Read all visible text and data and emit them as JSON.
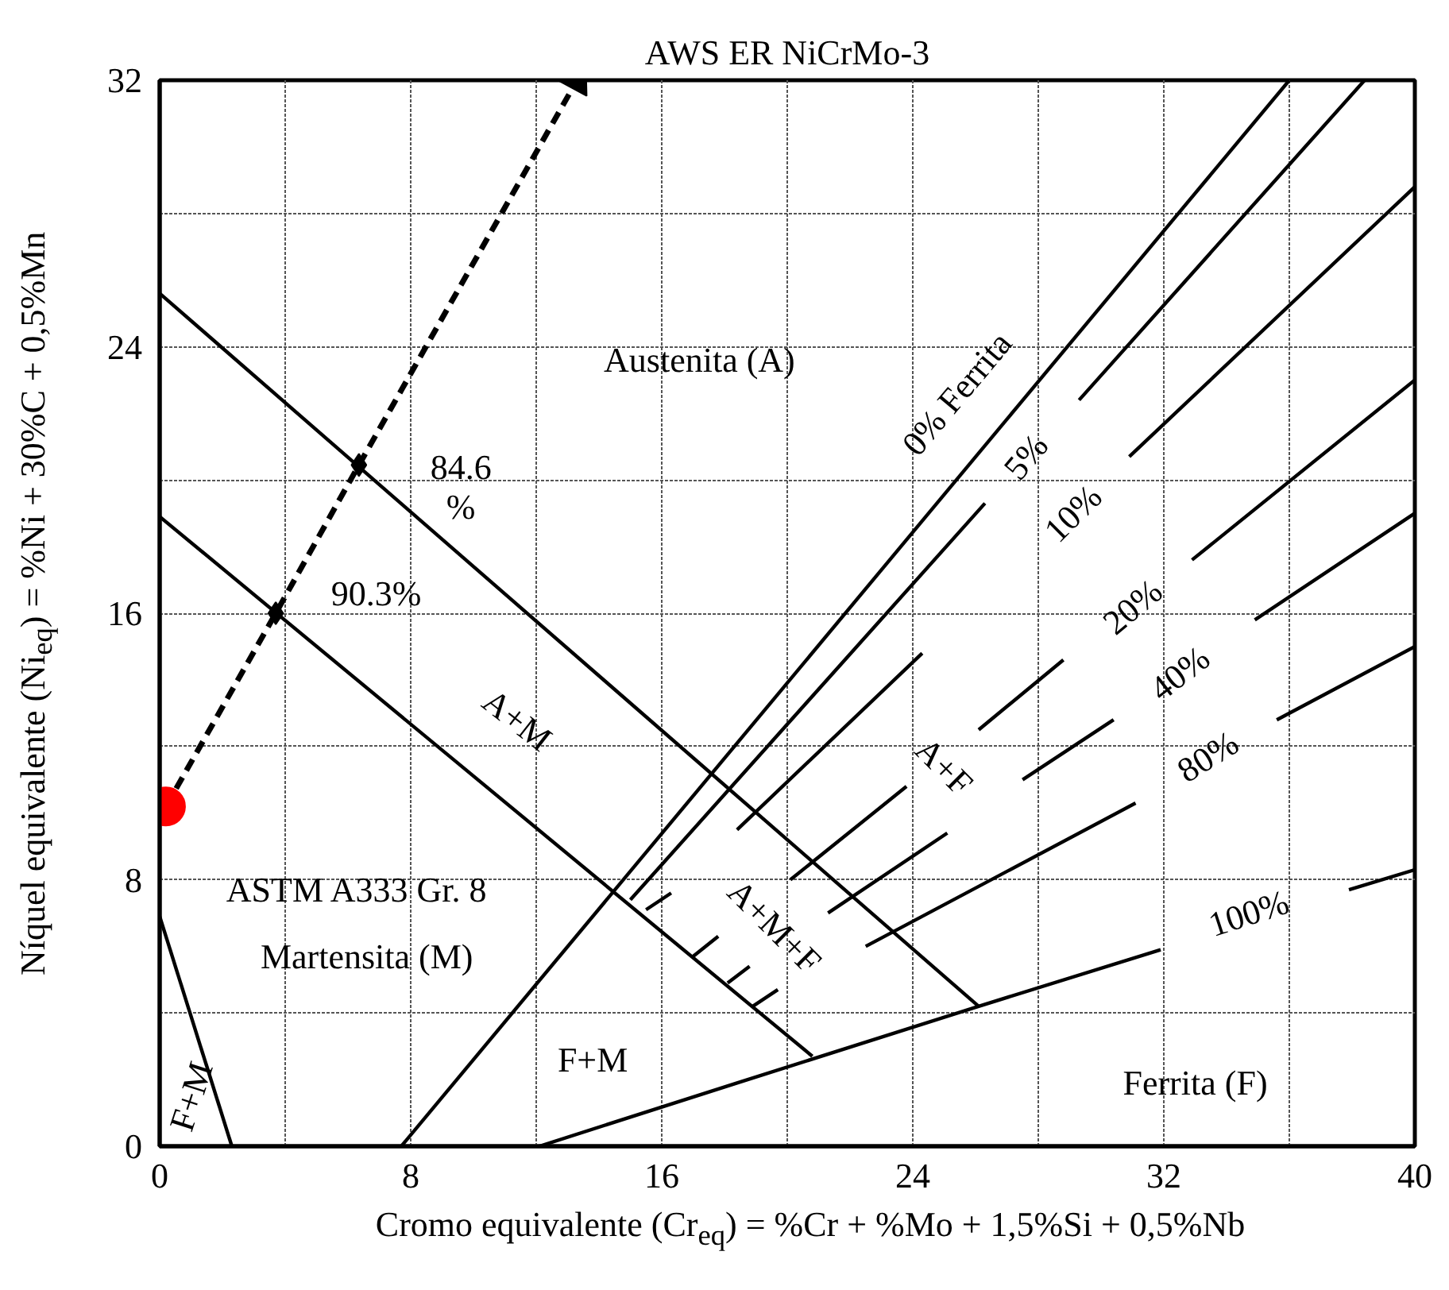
{
  "chart_data": {
    "type": "line",
    "title": "AWS ER NiCrMo-3",
    "xlabel": "Cromo equivalente (Cr$_{eq}$) = %Cr + %Mo + 1,5%Si + 0,5%Nb",
    "ylabel": "Níquel equivalente (Ni$_{eq}$) = %Ni + 30%C + 0,5%Mn",
    "xlim": [
      0,
      40
    ],
    "ylim": [
      0,
      32
    ],
    "xticks": [
      0,
      {
        "value": 4,
        "label": null
      },
      8,
      {
        "value": 12,
        "label": null
      },
      16,
      {
        "value": 20,
        "label": null
      },
      24,
      {
        "value": 28,
        "label": null
      },
      32,
      {
        "value": 36,
        "label": null
      },
      40
    ],
    "yticks": [
      0,
      {
        "value": 4,
        "label": null
      },
      8,
      {
        "value": 12,
        "label": null
      },
      16,
      {
        "value": 20,
        "label": null
      },
      24,
      {
        "value": 28,
        "label": null
      },
      32
    ],
    "grid": true,
    "line_style": "solid",
    "marker": "none",
    "series": [
      {
        "color": "#000000",
        "x": [
          0,
          26.1
        ],
        "values": [
          25.6,
          4.2
        ]
      },
      {
        "color": "#000000",
        "x": [
          0,
          20.8
        ],
        "values": [
          18.9,
          2.7
        ]
      },
      {
        "color": "#000000",
        "x": [
          7.7,
          36.0
        ],
        "values": [
          0,
          32
        ]
      },
      {
        "color": "#000000",
        "x": [
          15.0,
          26.3,
          27.8,
          29.3,
          38.4
        ],
        "values": [
          7.4,
          19.3,
          null,
          22.4,
          32
        ]
      },
      {
        "color": "#000000",
        "x": [
          18.4,
          24.3,
          27.6,
          30.9,
          40
        ],
        "values": [
          9.5,
          14.8,
          null,
          20.7,
          28.8
        ]
      },
      {
        "color": "#000000",
        "x": [
          20.1,
          23.8,
          25.0,
          26.1,
          28.8,
          31.0,
          32.9,
          40
        ],
        "values": [
          8.0,
          10.8,
          null,
          12.5,
          14.6,
          null,
          17.6,
          23.0
        ]
      },
      {
        "color": "#000000",
        "x": [
          21.3,
          25.1,
          26.3,
          27.5,
          30.4,
          32.6,
          34.9,
          40
        ],
        "values": [
          7.0,
          9.4,
          null,
          11.0,
          12.8,
          null,
          15.8,
          19.0
        ]
      },
      {
        "color": "#000000",
        "x": [
          22.5,
          31.1,
          33.3,
          35.6,
          40
        ],
        "values": [
          6.0,
          10.3,
          null,
          12.8,
          15.0
        ]
      },
      {
        "color": "#000000",
        "x": [
          12.1,
          18.4,
          26.1,
          31.9,
          34.9,
          37.9,
          40
        ],
        "values": [
          0,
          1.9,
          4.2,
          5.9,
          null,
          7.7,
          8.3
        ]
      },
      {
        "color": "#000000",
        "x": [
          0,
          2.3
        ],
        "values": [
          6.9,
          0
        ]
      },
      {
        "color": "#000000",
        "x": [
          15.5,
          16.3,
          16.6,
          17.0,
          17.8,
          17.9,
          18.1,
          18.8,
          18.85,
          18.9,
          19.7
        ],
        "values": [
          7.1,
          7.6,
          null,
          5.7,
          6.3,
          null,
          4.9,
          5.4,
          null,
          4.2,
          4.7
        ]
      },
      {
        "color": "#000000",
        "line_style": "dashed",
        "x": [
          0.2,
          3.7,
          6.35,
          13.3
        ],
        "values": [
          10.2,
          16.0,
          20.45,
          32.0
        ]
      },
      {
        "type": "scatter",
        "marker": "diamond",
        "color": "#000000",
        "x": [
          3.7,
          6.35
        ],
        "values": [
          16.0,
          20.45
        ]
      },
      {
        "type": "scatter",
        "marker": "circle",
        "color": "#ff0000",
        "x": [
          0.2
        ],
        "values": [
          10.2
        ]
      },
      {
        "type": "scatter",
        "marker": "triangle",
        "color": "#000000",
        "x": [
          13.3
        ],
        "values": [
          32.0
        ]
      }
    ],
    "annotations": [
      "Austenita (A)",
      "0% Ferrita",
      "5%",
      "10%",
      "20%",
      "40%",
      "80%",
      "100%",
      "A+F",
      "A+M+F",
      "A+M",
      "Martensita (M)",
      "F+M",
      "F+M",
      "Ferrita (F)",
      "ASTM A333 Gr. 8",
      "90.3%",
      "84.6\n%"
    ]
  }
}
